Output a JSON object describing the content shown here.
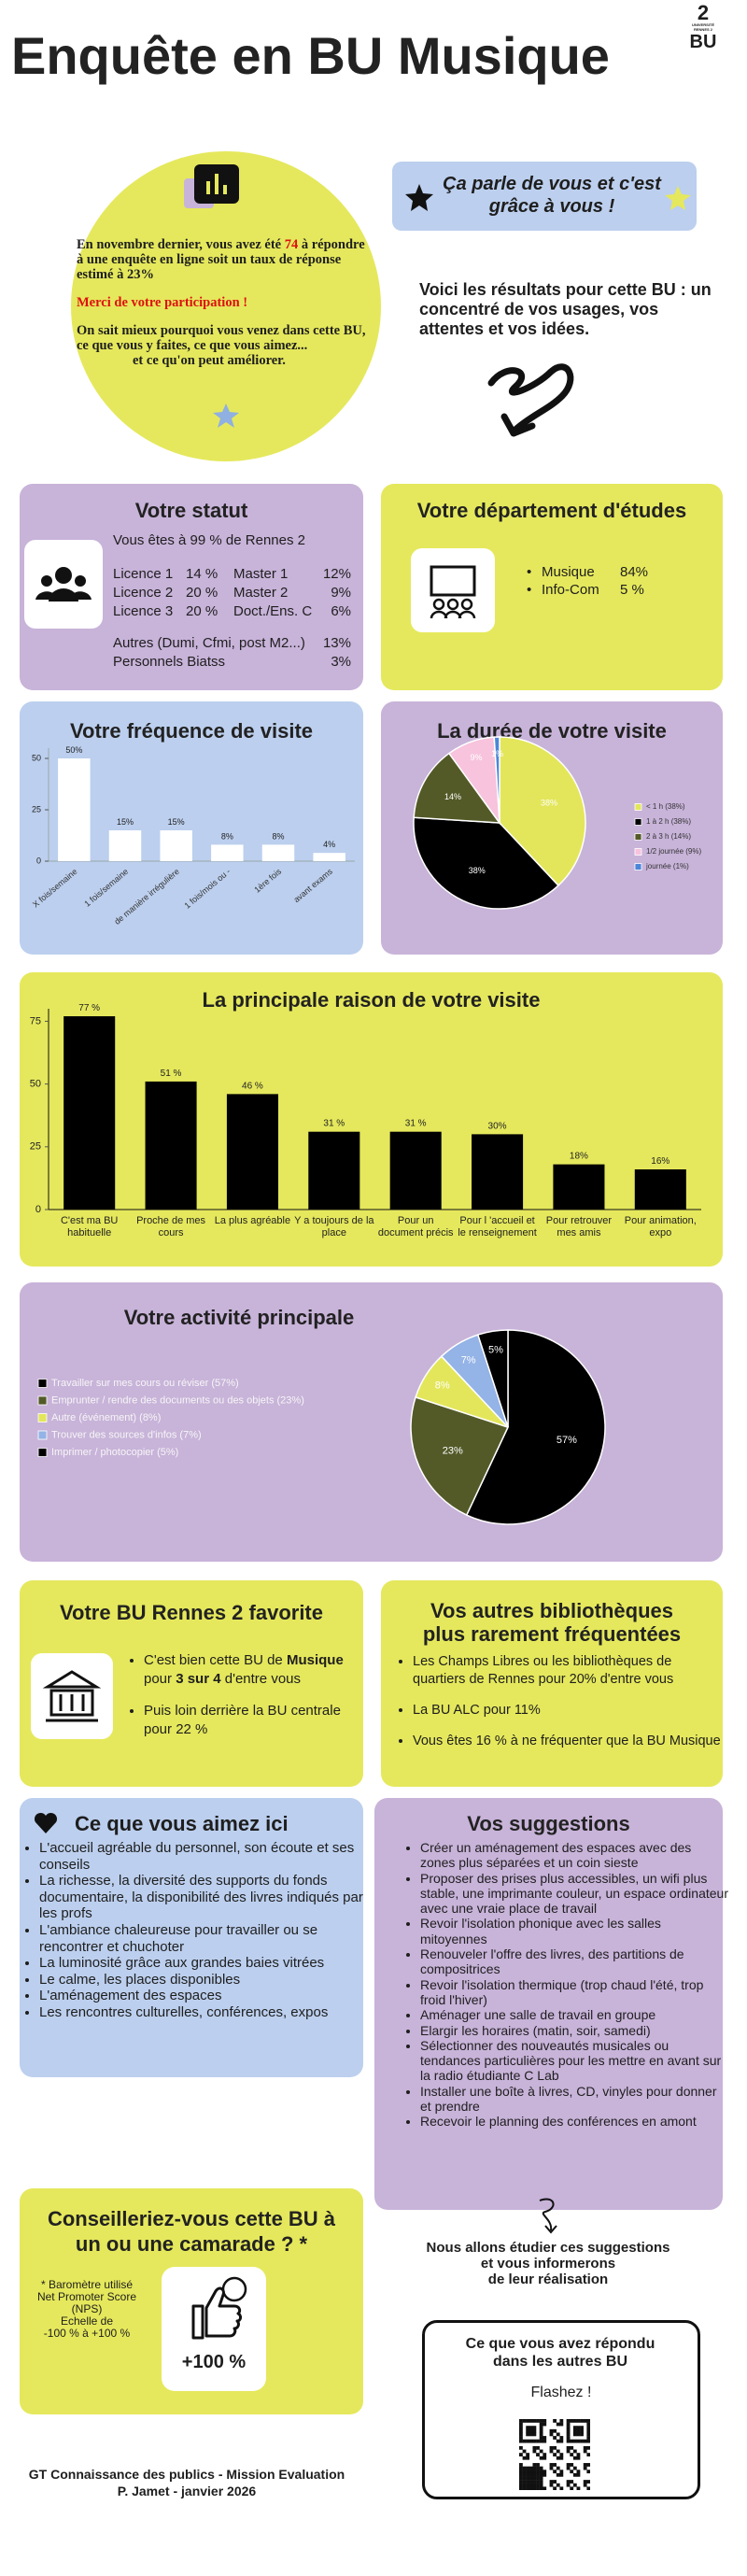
{
  "header": {
    "title": "Enquête en BU Musique",
    "logo": {
      "number": "2",
      "university": "UNIVERSITÉ RENNES 2",
      "bu": "BU"
    }
  },
  "intro": {
    "text_before": "En novembre dernier, vous avez été",
    "respondents": "74",
    "text_after": "à répondre à une enquête en ligne soit un taux de réponse estimé à 23%",
    "thanks": "Merci de votre participation !",
    "insight": "On sait mieux pourquoi vous venez dans cette BU, ce que vous y faites, ce que vous aimez...",
    "insight_end": "et ce qu'on peut améliorer."
  },
  "badge": "Ça parle de vous et c'est grâce à vous !",
  "results_intro": "Voici les résultats pour cette BU : un concentré de vos usages, vos attentes et vos idées.",
  "statut": {
    "title": "Votre statut",
    "origin": "Vous êtes à 99 % de Rennes 2",
    "levels": [
      [
        "Licence 1",
        "14 %",
        "Master 1",
        "12%"
      ],
      [
        "Licence 2",
        "20 %",
        "Master 2",
        "9%"
      ],
      [
        "Licence 3",
        "20 %",
        "Doct./Ens. C",
        "6%"
      ]
    ],
    "others": [
      [
        "Autres (Dumi, Cfmi, post M2...)",
        "13%"
      ],
      [
        "Personnels Biatss",
        "3%"
      ]
    ]
  },
  "departement": {
    "title": "Votre département d'études",
    "items": [
      [
        "Musique",
        "84%"
      ],
      [
        "Info-Com",
        "5 %"
      ]
    ]
  },
  "chart_data": [
    {
      "type": "bar",
      "title": "Votre fréquence de visite",
      "categories": [
        "X fois/semaine",
        "1 fois/semaine",
        "de manière irrégulière",
        "1 fois/mois ou -",
        "1ère fois",
        "avant exams"
      ],
      "values": [
        50,
        15,
        15,
        8,
        8,
        4
      ],
      "value_labels": [
        "50%",
        "15%",
        "15%",
        "8%",
        "8%",
        "4%"
      ],
      "color": "#ffffff",
      "ylim": [
        0,
        55
      ],
      "yticks": [
        0,
        25,
        50
      ]
    },
    {
      "type": "pie",
      "title": "La durée de votre visite",
      "categories": [
        "< 1 h (38%)",
        "1 à 2 h (38%)",
        "2 à 3 h (14%)",
        "1/2 journée (9%)",
        "journée (1%)"
      ],
      "values": [
        38,
        38,
        14,
        9,
        1
      ],
      "value_labels": [
        "38%",
        "38%",
        "14%",
        "9%",
        "1%"
      ],
      "colors": [
        "#e3e65a",
        "#000000",
        "#545a27",
        "#f7c3dd",
        "#4a86d8"
      ]
    },
    {
      "type": "bar",
      "title": "La principale raison de votre visite",
      "categories": [
        "C'est ma BU habituelle",
        "Proche de mes cours",
        "La plus agréable",
        "Y a toujours de la place",
        "Pour un document précis",
        "Pour l 'accueil et le renseignement",
        "Pour retrouver mes amis",
        "Pour animation, expo"
      ],
      "values": [
        77,
        51,
        46,
        31,
        31,
        30,
        18,
        16
      ],
      "value_labels": [
        "77 %",
        "51 %",
        "46 %",
        "31 %",
        "31 %",
        "30%",
        "18%",
        "16%"
      ],
      "color": "#000000",
      "ylim": [
        0,
        80
      ],
      "yticks": [
        0,
        25,
        50,
        75
      ]
    },
    {
      "type": "pie",
      "title": "Votre activité principale",
      "categories": [
        "Travailler sur mes cours ou réviser (57%)",
        "Emprunter / rendre des documents ou des objets (23%)",
        "Autre (événement) (8%)",
        "Trouver des sources d'infos (7%)",
        "Imprimer / photocopier (5%)"
      ],
      "values": [
        57,
        23,
        8,
        7,
        5
      ],
      "value_labels": [
        "57%",
        "23%",
        "8%",
        "7%",
        "5%"
      ],
      "colors": [
        "#000000",
        "#535a28",
        "#e3e65a",
        "#94b3e6",
        "#000000"
      ]
    }
  ],
  "favorite": {
    "title": "Votre BU Rennes 2 favorite",
    "first": [
      "C'est bien cette BU de",
      "Musique",
      "pour",
      "3 sur 4",
      "d'entre vous"
    ],
    "second": "Puis loin derrière la BU centrale pour 22 %"
  },
  "other_libraries": {
    "title_line1": "Vos autres bibliothèques",
    "title_line2": "plus rarement fréquentées",
    "items": [
      "Les Champs Libres ou les bibliothèques de quartiers de Rennes pour 20% d'entre vous",
      "La BU ALC pour 11%",
      "Vous êtes 16 % à ne fréquenter que la BU Musique"
    ]
  },
  "likes": {
    "title": "Ce que vous aimez ici",
    "items": [
      "L'accueil agréable du personnel, son écoute et ses conseils",
      "La richesse, la diversité des supports du fonds documentaire, la disponibilité des livres indiqués par les profs",
      "L'ambiance chaleureuse pour travailler ou se rencontrer et chuchoter",
      "La luminosité grâce aux grandes baies vitrées",
      "Le calme, les places disponibles",
      "L'aménagement des espaces",
      "Les rencontres culturelles, conférences, expos"
    ]
  },
  "suggestions": {
    "title": "Vos suggestions",
    "items": [
      "Créer un aménagement des espaces avec des zones plus séparées et un coin sieste",
      "Proposer des prises plus accessibles, un wifi plus stable, une imprimante couleur, un espace ordinateur avec une vraie place de travail",
      "Revoir l'isolation phonique avec les salles mitoyennes",
      "Renouveler l'offre des livres, des partitions de compositrices",
      "Revoir l'isolation thermique (trop chaud l'été, trop froid l'hiver)",
      "Aménager une salle de travail en groupe",
      "Elargir les horaires (matin, soir, samedi)",
      "Sélectionner des nouveautés musicales ou tendances particulières pour les mettre en avant sur la radio étudiante C Lab",
      "Installer une boîte à livres, CD, vinyles pour donner et prendre",
      "Recevoir le planning des conférences en amont"
    ],
    "follow_up": [
      "Nous allons étudier ces suggestions",
      "et vous informerons",
      "de leur réalisation"
    ]
  },
  "recommend": {
    "title": "Conseilleriez-vous cette BU à un ou une camarade ? *",
    "note": [
      "* Baromètre utilisé",
      "Net Promoter Score",
      "(NPS)",
      "Echelle de",
      "-100 % à +100 %"
    ],
    "score": "+100 %"
  },
  "other_results": {
    "title": "Ce que vous avez répondu dans les autres BU",
    "cta": "Flashez !"
  },
  "footer": [
    "GT Connaissance des publics - Mission Evaluation",
    "P. Jamet - janvier 2026"
  ]
}
